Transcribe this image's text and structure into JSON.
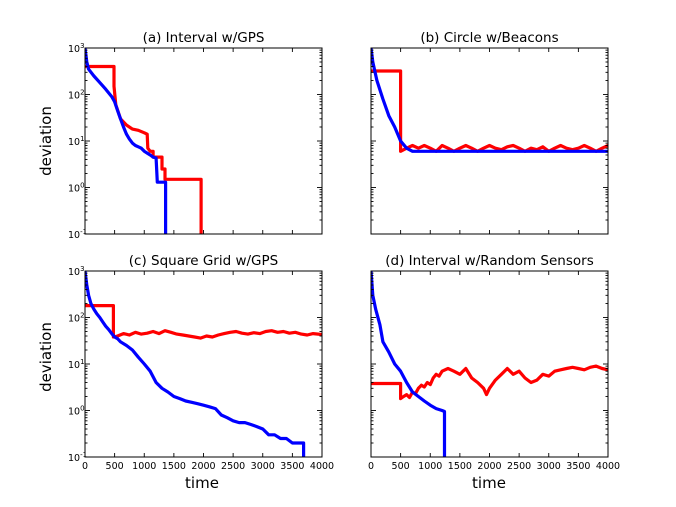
{
  "figure": {
    "x_label": "time",
    "y_label": "deviation"
  },
  "chart_data": [
    {
      "type": "line",
      "title": "(a) Interval w/GPS",
      "xlabel": "",
      "ylabel": "deviation",
      "xlim": [
        0,
        4000
      ],
      "ylim": [
        0.1,
        1000
      ],
      "yscale": "log",
      "x_ticks": [],
      "y_ticks": [
        {
          "base": "10",
          "exp": "3",
          "value": 1000
        },
        {
          "base": "10",
          "exp": "2",
          "value": 100
        },
        {
          "base": "10",
          "exp": "1",
          "value": 10
        },
        {
          "base": "10",
          "exp": "0",
          "value": 1
        },
        {
          "base": "10",
          "exp": "-1",
          "value": 0.1
        }
      ],
      "series": [
        {
          "color": "#ff0000",
          "points": [
            [
              0,
              400
            ],
            [
              490,
              400
            ],
            [
              490,
              150
            ],
            [
              520,
              60
            ],
            [
              600,
              30
            ],
            [
              700,
              22
            ],
            [
              800,
              18
            ],
            [
              900,
              17
            ],
            [
              1000,
              15
            ],
            [
              1050,
              14
            ],
            [
              1060,
              7
            ],
            [
              1100,
              6
            ],
            [
              1150,
              6
            ],
            [
              1150,
              4.5
            ],
            [
              1300,
              4.5
            ],
            [
              1300,
              2.5
            ],
            [
              1350,
              2.5
            ],
            [
              1350,
              1.5
            ],
            [
              1960,
              1.5
            ],
            [
              1960,
              0.1
            ]
          ]
        },
        {
          "color": "#0000ff",
          "points": [
            [
              0,
              1000
            ],
            [
              30,
              500
            ],
            [
              60,
              350
            ],
            [
              150,
              250
            ],
            [
              250,
              180
            ],
            [
              350,
              130
            ],
            [
              450,
              90
            ],
            [
              500,
              70
            ],
            [
              550,
              45
            ],
            [
              600,
              30
            ],
            [
              650,
              20
            ],
            [
              700,
              14
            ],
            [
              750,
              11
            ],
            [
              800,
              9
            ],
            [
              850,
              8
            ],
            [
              900,
              7.5
            ],
            [
              950,
              7
            ],
            [
              1000,
              6
            ],
            [
              1050,
              5.5
            ],
            [
              1100,
              5
            ],
            [
              1150,
              4.5
            ],
            [
              1200,
              4.3
            ],
            [
              1220,
              1.3
            ],
            [
              1360,
              1.3
            ],
            [
              1360,
              0.1
            ]
          ]
        }
      ]
    },
    {
      "type": "line",
      "title": "(b) Circle w/Beacons",
      "xlabel": "",
      "ylabel": "",
      "xlim": [
        0,
        4000
      ],
      "ylim": [
        0.1,
        1000
      ],
      "yscale": "log",
      "x_ticks": [],
      "y_ticks": [],
      "series": [
        {
          "color": "#ff0000",
          "points": [
            [
              0,
              320
            ],
            [
              500,
              320
            ],
            [
              500,
              6
            ],
            [
              600,
              7
            ],
            [
              700,
              8
            ],
            [
              800,
              7
            ],
            [
              900,
              8
            ],
            [
              1000,
              7
            ],
            [
              1100,
              6
            ],
            [
              1200,
              8
            ],
            [
              1300,
              7
            ],
            [
              1400,
              6
            ],
            [
              1500,
              7
            ],
            [
              1600,
              8
            ],
            [
              1700,
              7
            ],
            [
              1800,
              6
            ],
            [
              1900,
              7
            ],
            [
              2000,
              8
            ],
            [
              2100,
              7
            ],
            [
              2200,
              6.5
            ],
            [
              2300,
              7.5
            ],
            [
              2400,
              8
            ],
            [
              2500,
              7
            ],
            [
              2600,
              6
            ],
            [
              2700,
              7
            ],
            [
              2800,
              6.5
            ],
            [
              2900,
              7.5
            ],
            [
              3000,
              6
            ],
            [
              3100,
              7
            ],
            [
              3200,
              8
            ],
            [
              3300,
              7
            ],
            [
              3400,
              6.5
            ],
            [
              3500,
              7
            ],
            [
              3600,
              8
            ],
            [
              3700,
              7
            ],
            [
              3800,
              6
            ],
            [
              3900,
              7
            ],
            [
              4000,
              8
            ]
          ]
        },
        {
          "color": "#0000ff",
          "points": [
            [
              0,
              1000
            ],
            [
              30,
              500
            ],
            [
              100,
              200
            ],
            [
              200,
              80
            ],
            [
              300,
              35
            ],
            [
              400,
              20
            ],
            [
              500,
              10
            ],
            [
              600,
              7
            ],
            [
              700,
              6
            ],
            [
              1500,
              6
            ],
            [
              4000,
              6
            ]
          ]
        }
      ]
    },
    {
      "type": "line",
      "title": "(c) Square Grid w/GPS",
      "xlabel": "time",
      "ylabel": "deviation",
      "xlim": [
        0,
        4000
      ],
      "ylim": [
        0.1,
        1000
      ],
      "yscale": "log",
      "x_ticks": [
        "0",
        "500",
        "1000",
        "1500",
        "2000",
        "2500",
        "3000",
        "3500",
        "4000"
      ],
      "y_ticks": [
        {
          "base": "10",
          "exp": "3",
          "value": 1000
        },
        {
          "base": "10",
          "exp": "2",
          "value": 100
        },
        {
          "base": "10",
          "exp": "1",
          "value": 10
        },
        {
          "base": "10",
          "exp": "0",
          "value": 1
        },
        {
          "base": "10",
          "exp": "-1",
          "value": 0.1
        }
      ],
      "series": [
        {
          "color": "#ff0000",
          "points": [
            [
              0,
              180
            ],
            [
              480,
              180
            ],
            [
              480,
              38
            ],
            [
              550,
              40
            ],
            [
              650,
              45
            ],
            [
              750,
              42
            ],
            [
              850,
              48
            ],
            [
              950,
              44
            ],
            [
              1050,
              46
            ],
            [
              1150,
              50
            ],
            [
              1250,
              45
            ],
            [
              1350,
              52
            ],
            [
              1450,
              48
            ],
            [
              1550,
              44
            ],
            [
              1650,
              42
            ],
            [
              1750,
              40
            ],
            [
              1850,
              38
            ],
            [
              1950,
              36
            ],
            [
              2050,
              40
            ],
            [
              2150,
              38
            ],
            [
              2250,
              42
            ],
            [
              2350,
              45
            ],
            [
              2450,
              48
            ],
            [
              2550,
              50
            ],
            [
              2650,
              46
            ],
            [
              2750,
              44
            ],
            [
              2850,
              47
            ],
            [
              2950,
              45
            ],
            [
              3050,
              50
            ],
            [
              3150,
              52
            ],
            [
              3250,
              48
            ],
            [
              3350,
              50
            ],
            [
              3450,
              46
            ],
            [
              3550,
              48
            ],
            [
              3650,
              44
            ],
            [
              3750,
              42
            ],
            [
              3850,
              45
            ],
            [
              4000,
              43
            ]
          ]
        },
        {
          "color": "#0000ff",
          "points": [
            [
              0,
              1000
            ],
            [
              30,
              500
            ],
            [
              60,
              300
            ],
            [
              100,
              200
            ],
            [
              150,
              150
            ],
            [
              200,
              120
            ],
            [
              250,
              100
            ],
            [
              300,
              80
            ],
            [
              350,
              65
            ],
            [
              400,
              55
            ],
            [
              450,
              45
            ],
            [
              500,
              38
            ],
            [
              550,
              35
            ],
            [
              600,
              30
            ],
            [
              700,
              25
            ],
            [
              800,
              20
            ],
            [
              900,
              14
            ],
            [
              1000,
              10
            ],
            [
              1100,
              7
            ],
            [
              1200,
              4
            ],
            [
              1300,
              3
            ],
            [
              1400,
              2.5
            ],
            [
              1500,
              2
            ],
            [
              1600,
              1.8
            ],
            [
              1700,
              1.6
            ],
            [
              1800,
              1.5
            ],
            [
              1900,
              1.4
            ],
            [
              2000,
              1.3
            ],
            [
              2100,
              1.2
            ],
            [
              2200,
              1.1
            ],
            [
              2300,
              0.8
            ],
            [
              2400,
              0.7
            ],
            [
              2500,
              0.6
            ],
            [
              2600,
              0.55
            ],
            [
              2700,
              0.55
            ],
            [
              2800,
              0.5
            ],
            [
              2900,
              0.45
            ],
            [
              3000,
              0.4
            ],
            [
              3100,
              0.3
            ],
            [
              3200,
              0.3
            ],
            [
              3300,
              0.25
            ],
            [
              3400,
              0.25
            ],
            [
              3500,
              0.2
            ],
            [
              3600,
              0.2
            ],
            [
              3690,
              0.2
            ],
            [
              3690,
              0.1
            ]
          ]
        }
      ]
    },
    {
      "type": "line",
      "title": "(d) Interval w/Random Sensors",
      "xlabel": "time",
      "ylabel": "",
      "xlim": [
        0,
        4000
      ],
      "ylim": [
        0.1,
        1000
      ],
      "yscale": "log",
      "x_ticks": [
        "0",
        "500",
        "1000",
        "1500",
        "2000",
        "2500",
        "3000",
        "3500",
        "4000"
      ],
      "y_ticks": [],
      "series": [
        {
          "color": "#ff0000",
          "points": [
            [
              0,
              3.8
            ],
            [
              500,
              3.8
            ],
            [
              500,
              1.8
            ],
            [
              550,
              2
            ],
            [
              600,
              2.2
            ],
            [
              650,
              1.9
            ],
            [
              700,
              2.5
            ],
            [
              750,
              2.3
            ],
            [
              800,
              3
            ],
            [
              850,
              3.5
            ],
            [
              900,
              3.2
            ],
            [
              950,
              4
            ],
            [
              1000,
              3.6
            ],
            [
              1050,
              5
            ],
            [
              1100,
              6
            ],
            [
              1150,
              5.5
            ],
            [
              1200,
              7
            ],
            [
              1300,
              8
            ],
            [
              1400,
              7
            ],
            [
              1500,
              6
            ],
            [
              1600,
              8
            ],
            [
              1700,
              5
            ],
            [
              1800,
              4
            ],
            [
              1900,
              3
            ],
            [
              1950,
              2.2
            ],
            [
              2000,
              3
            ],
            [
              2100,
              4.5
            ],
            [
              2200,
              6
            ],
            [
              2300,
              8
            ],
            [
              2400,
              6
            ],
            [
              2500,
              7
            ],
            [
              2600,
              5
            ],
            [
              2700,
              4
            ],
            [
              2800,
              4.5
            ],
            [
              2900,
              6
            ],
            [
              3000,
              5.5
            ],
            [
              3100,
              7
            ],
            [
              3200,
              7.5
            ],
            [
              3300,
              8
            ],
            [
              3400,
              8.5
            ],
            [
              3500,
              8
            ],
            [
              3600,
              7.5
            ],
            [
              3700,
              8.5
            ],
            [
              3800,
              9
            ],
            [
              3900,
              8
            ],
            [
              4000,
              7.5
            ]
          ]
        },
        {
          "color": "#0000ff",
          "points": [
            [
              0,
              1000
            ],
            [
              30,
              300
            ],
            [
              80,
              150
            ],
            [
              150,
              70
            ],
            [
              200,
              30
            ],
            [
              300,
              18
            ],
            [
              400,
              10
            ],
            [
              500,
              7
            ],
            [
              600,
              4
            ],
            [
              700,
              2.5
            ],
            [
              800,
              2
            ],
            [
              900,
              1.6
            ],
            [
              1000,
              1.3
            ],
            [
              1100,
              1.1
            ],
            [
              1200,
              1
            ],
            [
              1240,
              0.95
            ],
            [
              1240,
              0.1
            ]
          ]
        }
      ]
    }
  ]
}
